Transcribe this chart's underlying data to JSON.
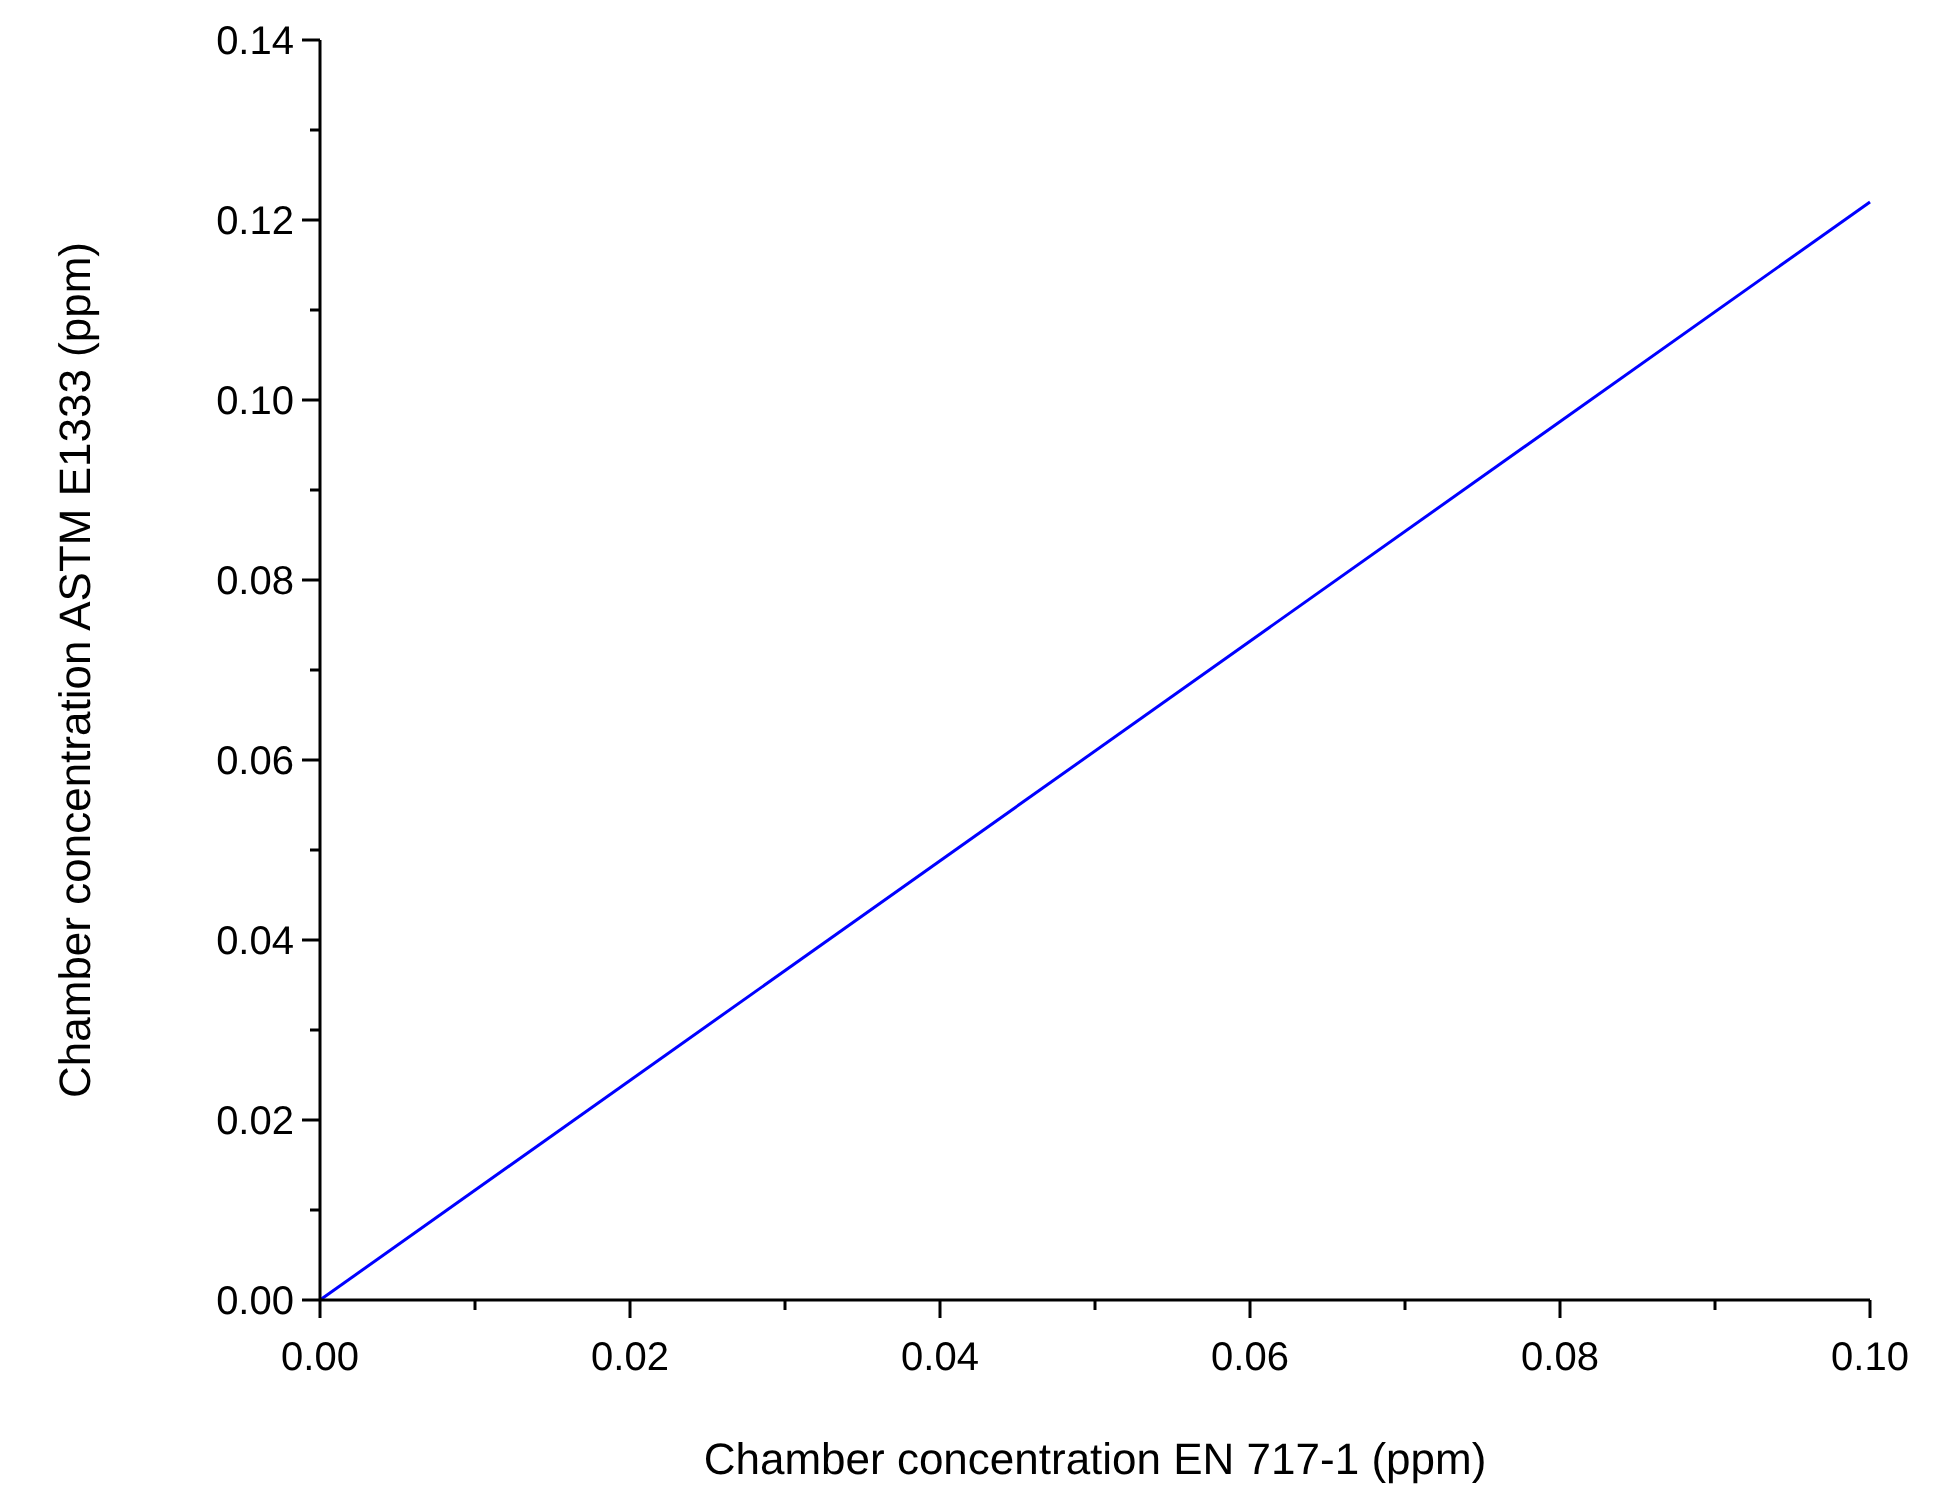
{
  "chart_data": {
    "type": "line",
    "xlabel": "Chamber concentration EN 717-1 (ppm)",
    "ylabel": "Chamber concentration ASTM E1333 (ppm)",
    "x": [
      0,
      0.1
    ],
    "series": [
      {
        "color": "#0000ff",
        "values": [
          0,
          0.122
        ]
      }
    ],
    "xlim": [
      0,
      0.1
    ],
    "ylim": [
      0,
      0.14
    ],
    "xticks": [
      {
        "value": 0,
        "label": "0.00"
      },
      {
        "value": 0.01,
        "label": null
      },
      {
        "value": 0.02,
        "label": "0.02"
      },
      {
        "value": 0.03,
        "label": null
      },
      {
        "value": 0.04,
        "label": "0.04"
      },
      {
        "value": 0.05,
        "label": null
      },
      {
        "value": 0.06,
        "label": "0.06"
      },
      {
        "value": 0.07,
        "label": null
      },
      {
        "value": 0.08,
        "label": "0.08"
      },
      {
        "value": 0.09,
        "label": null
      },
      {
        "value": 0.1,
        "label": "0.10"
      }
    ],
    "yticks": [
      {
        "value": 0,
        "label": "0.00"
      },
      {
        "value": 0.01,
        "label": null
      },
      {
        "value": 0.02,
        "label": "0.02"
      },
      {
        "value": 0.03,
        "label": null
      },
      {
        "value": 0.04,
        "label": "0.04"
      },
      {
        "value": 0.05,
        "label": null
      },
      {
        "value": 0.06,
        "label": "0.06"
      },
      {
        "value": 0.07,
        "label": null
      },
      {
        "value": 0.08,
        "label": "0.08"
      },
      {
        "value": 0.09,
        "label": null
      },
      {
        "value": 0.1,
        "label": "0.10"
      },
      {
        "value": 0.11,
        "label": null
      },
      {
        "value": 0.12,
        "label": "0.12"
      },
      {
        "value": 0.13,
        "label": null
      },
      {
        "value": 0.14,
        "label": "0.14"
      }
    ],
    "grid": false,
    "marker": "none",
    "line_style": "solid"
  }
}
